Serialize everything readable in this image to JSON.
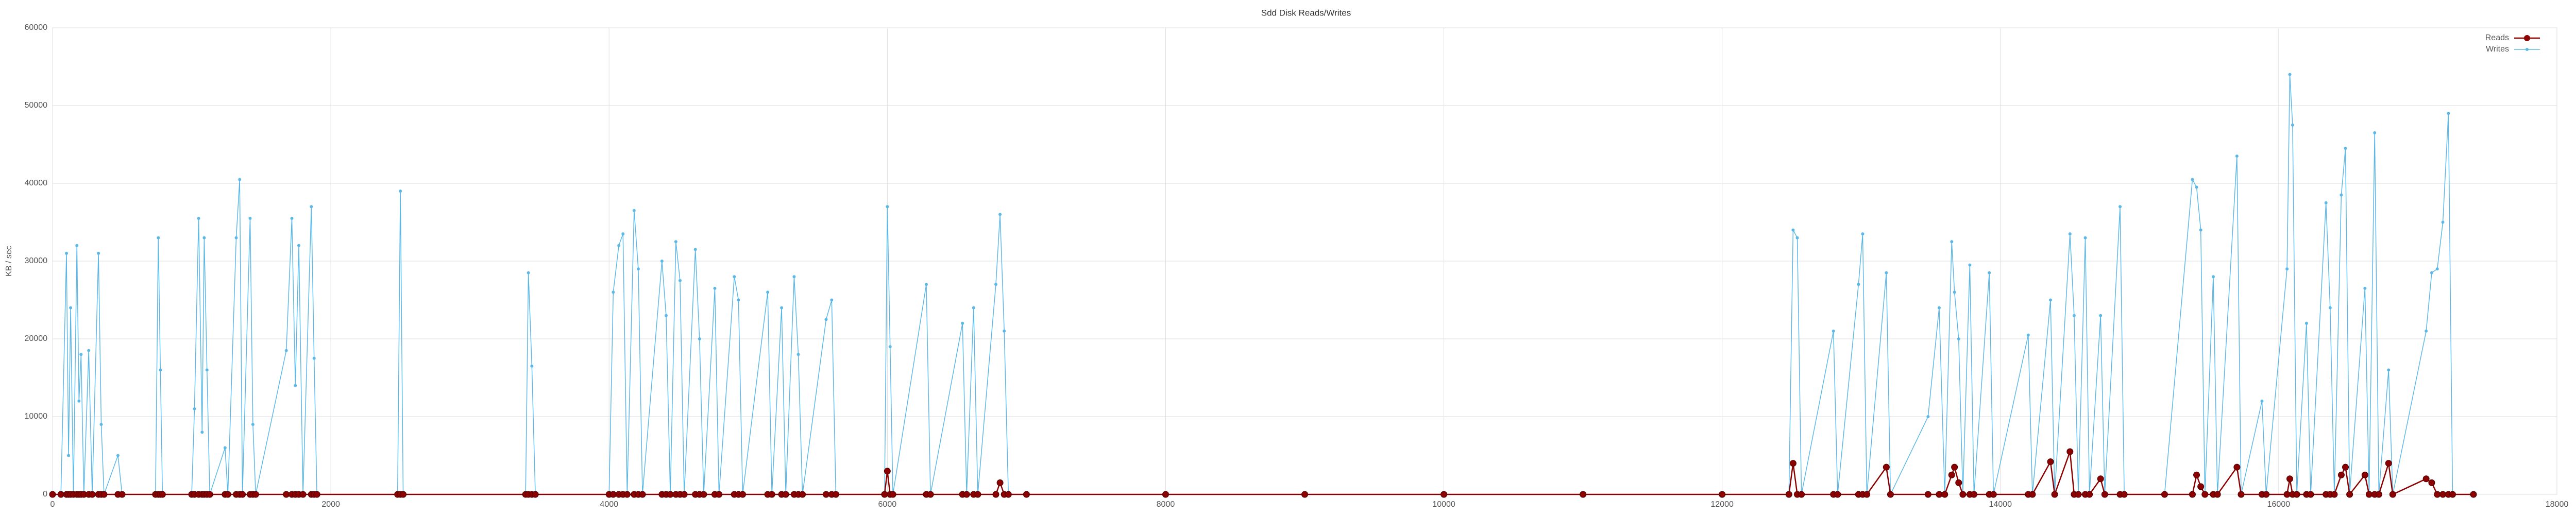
{
  "chart_data": {
    "type": "line",
    "title": "Sdd Disk Reads/Writes",
    "y_label": "KB / sec",
    "x": [
      0,
      60,
      100,
      115,
      130,
      150,
      175,
      190,
      205,
      225,
      260,
      285,
      330,
      350,
      370,
      470,
      500,
      740,
      760,
      775,
      790,
      1000,
      1020,
      1050,
      1075,
      1090,
      1110,
      1130,
      1240,
      1260,
      1320,
      1345,
      1365,
      1420,
      1440,
      1460,
      1680,
      1720,
      1745,
      1770,
      1800,
      1860,
      1880,
      1900,
      2480,
      2500,
      2520,
      3400,
      3420,
      3445,
      3470,
      4000,
      4030,
      4070,
      4100,
      4130,
      4180,
      4210,
      4240,
      4380,
      4410,
      4440,
      4480,
      4510,
      4540,
      4620,
      4650,
      4680,
      4760,
      4790,
      4900,
      4930,
      4960,
      5140,
      5170,
      5240,
      5270,
      5330,
      5360,
      5390,
      5560,
      5600,
      5630,
      5980,
      6000,
      6020,
      6040,
      6280,
      6310,
      6540,
      6570,
      6620,
      6650,
      6780,
      6810,
      6840,
      6870,
      7000,
      8000,
      9000,
      10000,
      11000,
      12000,
      12480,
      12510,
      12540,
      12570,
      12800,
      12830,
      12980,
      13010,
      13040,
      13180,
      13210,
      13480,
      13560,
      13600,
      13650,
      13670,
      13700,
      13730,
      13780,
      13810,
      13920,
      13950,
      14200,
      14230,
      14360,
      14390,
      14500,
      14530,
      14560,
      14610,
      14640,
      14720,
      14750,
      14860,
      14890,
      15180,
      15380,
      15410,
      15440,
      15470,
      15530,
      15560,
      15700,
      15730,
      15880,
      15910,
      16060,
      16080,
      16100,
      16130,
      16200,
      16230,
      16340,
      16370,
      16400,
      16450,
      16480,
      16510,
      16620,
      16650,
      16690,
      16720,
      16790,
      16820,
      17060,
      17100,
      17140,
      17180,
      17220,
      17250,
      17400
    ],
    "series": [
      {
        "name": "Reads",
        "color": "#8b0000",
        "values": [
          0,
          0,
          0,
          0,
          0,
          0,
          0,
          0,
          0,
          0,
          0,
          0,
          0,
          0,
          0,
          0,
          0,
          0,
          0,
          0,
          0,
          0,
          0,
          0,
          0,
          0,
          0,
          0,
          0,
          0,
          0,
          0,
          0,
          0,
          0,
          0,
          0,
          0,
          0,
          0,
          0,
          0,
          0,
          0,
          0,
          0,
          0,
          0,
          0,
          0,
          0,
          0,
          0,
          0,
          0,
          0,
          0,
          0,
          0,
          0,
          0,
          0,
          0,
          0,
          0,
          0,
          0,
          0,
          0,
          0,
          0,
          0,
          0,
          0,
          0,
          0,
          0,
          0,
          0,
          0,
          0,
          0,
          0,
          0,
          3000,
          0,
          0,
          0,
          0,
          0,
          0,
          0,
          0,
          0,
          1500,
          0,
          0,
          0,
          0,
          0,
          0,
          0,
          0,
          0,
          4000,
          0,
          0,
          0,
          0,
          0,
          0,
          0,
          3500,
          0,
          0,
          0,
          0,
          2500,
          3500,
          1500,
          0,
          0,
          0,
          0,
          0,
          0,
          0,
          4200,
          0,
          5500,
          0,
          0,
          0,
          0,
          2000,
          0,
          0,
          0,
          0,
          0,
          2500,
          1000,
          0,
          0,
          0,
          3500,
          0,
          0,
          0,
          0,
          2000,
          0,
          0,
          0,
          0,
          0,
          0,
          0,
          2500,
          3500,
          0,
          2500,
          0,
          0,
          0,
          4000,
          0,
          2000,
          1500,
          0,
          0,
          0,
          0,
          0
        ]
      },
      {
        "name": "Writes",
        "color": "#5bb8e6",
        "values": [
          0,
          0,
          31000,
          5000,
          24000,
          0,
          32000,
          12000,
          18000,
          0,
          18500,
          0,
          31000,
          9000,
          0,
          5000,
          0,
          0,
          33000,
          16000,
          0,
          0,
          11000,
          35500,
          8000,
          33000,
          16000,
          0,
          6000,
          0,
          33000,
          40500,
          0,
          35500,
          9000,
          0,
          18500,
          35500,
          14000,
          32000,
          0,
          37000,
          17500,
          0,
          0,
          39000,
          0,
          0,
          28500,
          16500,
          0,
          0,
          26000,
          32000,
          33500,
          0,
          36500,
          29000,
          0,
          30000,
          23000,
          0,
          32500,
          27500,
          0,
          31500,
          20000,
          0,
          26500,
          0,
          28000,
          25000,
          0,
          26000,
          0,
          24000,
          0,
          28000,
          18000,
          0,
          22500,
          25000,
          0,
          0,
          37000,
          19000,
          0,
          27000,
          0,
          22000,
          0,
          24000,
          0,
          27000,
          36000,
          21000,
          0,
          0,
          0,
          0,
          0,
          0,
          0,
          0,
          34000,
          33000,
          0,
          21000,
          0,
          27000,
          33500,
          0,
          28500,
          0,
          10000,
          24000,
          0,
          32500,
          26000,
          20000,
          0,
          29500,
          0,
          28500,
          0,
          20500,
          0,
          25000,
          0,
          33500,
          23000,
          0,
          33000,
          0,
          23000,
          0,
          37000,
          0,
          0,
          40500,
          39500,
          34000,
          0,
          28000,
          0,
          43500,
          0,
          12000,
          0,
          29000,
          54000,
          47500,
          0,
          22000,
          0,
          37500,
          24000,
          0,
          38500,
          44500,
          0,
          26500,
          0,
          46500,
          0,
          16000,
          0,
          21000,
          28500,
          29000,
          35000,
          49000,
          0,
          0
        ]
      }
    ],
    "xlim": [
      0,
      18000
    ],
    "xticks": [
      0,
      2000,
      4000,
      6000,
      8000,
      10000,
      12000,
      14000,
      16000,
      18000
    ],
    "ylim": [
      0,
      60000
    ],
    "yticks": [
      0,
      10000,
      20000,
      30000,
      40000,
      50000,
      60000
    ],
    "grid": true,
    "legend": "top-right"
  }
}
